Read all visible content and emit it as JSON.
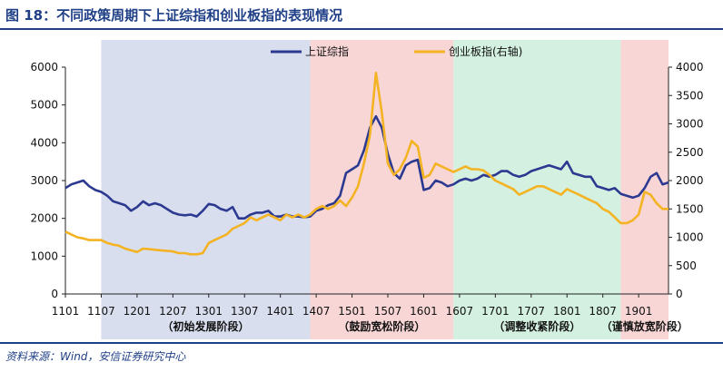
{
  "header": {
    "title": "图 18：不同政策周期下上证综指和创业板指的表现情况"
  },
  "footer": {
    "source": "资料来源：Wind，安信证券研究中心"
  },
  "chart_data": {
    "type": "line",
    "x": [
      "1101",
      "1102",
      "1103",
      "1104",
      "1105",
      "1106",
      "1107",
      "1108",
      "1109",
      "1110",
      "1111",
      "1112",
      "1201",
      "1202",
      "1203",
      "1204",
      "1205",
      "1206",
      "1207",
      "1208",
      "1209",
      "1210",
      "1211",
      "1212",
      "1301",
      "1302",
      "1303",
      "1304",
      "1305",
      "1306",
      "1307",
      "1308",
      "1309",
      "1310",
      "1311",
      "1312",
      "1401",
      "1402",
      "1403",
      "1404",
      "1405",
      "1406",
      "1407",
      "1408",
      "1409",
      "1410",
      "1411",
      "1412",
      "1501",
      "1502",
      "1503",
      "1504",
      "1505",
      "1506",
      "1507",
      "1508",
      "1509",
      "1510",
      "1511",
      "1512",
      "1601",
      "1602",
      "1603",
      "1604",
      "1605",
      "1606",
      "1607",
      "1608",
      "1609",
      "1610",
      "1611",
      "1612",
      "1701",
      "1702",
      "1703",
      "1704",
      "1705",
      "1706",
      "1707",
      "1708",
      "1709",
      "1710",
      "1711",
      "1712",
      "1801",
      "1802",
      "1803",
      "1804",
      "1805",
      "1806",
      "1807",
      "1808",
      "1809",
      "1810",
      "1811",
      "1812",
      "1901",
      "1902",
      "1903",
      "1904",
      "1905",
      "1906"
    ],
    "x_tick_labels": [
      "1101",
      "1107",
      "1201",
      "1207",
      "1301",
      "1307",
      "1401",
      "1407",
      "1501",
      "1507",
      "1601",
      "1607",
      "1701",
      "1707",
      "1801",
      "1807",
      "1901"
    ],
    "series": [
      {
        "name": "上证综指",
        "color": "#2b3990",
        "axis": "left",
        "values": [
          2800,
          2900,
          2950,
          3000,
          2850,
          2750,
          2700,
          2600,
          2450,
          2400,
          2350,
          2200,
          2300,
          2450,
          2350,
          2400,
          2350,
          2250,
          2150,
          2100,
          2080,
          2100,
          2050,
          2200,
          2380,
          2350,
          2250,
          2200,
          2300,
          2000,
          2000,
          2100,
          2150,
          2150,
          2200,
          2050,
          2050,
          2100,
          2050,
          2050,
          2030,
          2050,
          2200,
          2250,
          2350,
          2400,
          2600,
          3200,
          3300,
          3400,
          3800,
          4400,
          4700,
          4400,
          3700,
          3200,
          3050,
          3400,
          3500,
          3550,
          2750,
          2800,
          3000,
          2950,
          2850,
          2900,
          3000,
          3050,
          3000,
          3050,
          3150,
          3100,
          3150,
          3250,
          3250,
          3150,
          3100,
          3150,
          3250,
          3300,
          3350,
          3400,
          3350,
          3300,
          3500,
          3200,
          3150,
          3100,
          3100,
          2850,
          2800,
          2750,
          2800,
          2650,
          2600,
          2550,
          2600,
          2800,
          3100,
          3200,
          2900,
          2950
        ]
      },
      {
        "name": "创业板指(右轴)",
        "color": "#f4b323",
        "axis": "right",
        "values": [
          1100,
          1050,
          1000,
          980,
          950,
          950,
          950,
          900,
          870,
          850,
          800,
          770,
          740,
          800,
          790,
          780,
          770,
          760,
          750,
          720,
          720,
          700,
          700,
          720,
          900,
          950,
          1000,
          1050,
          1150,
          1200,
          1250,
          1350,
          1300,
          1350,
          1400,
          1350,
          1300,
          1400,
          1350,
          1400,
          1350,
          1400,
          1500,
          1550,
          1500,
          1550,
          1650,
          1550,
          1700,
          1900,
          2300,
          2800,
          3900,
          3200,
          2300,
          2100,
          2200,
          2400,
          2700,
          2600,
          2050,
          2100,
          2300,
          2250,
          2200,
          2150,
          2200,
          2250,
          2200,
          2200,
          2180,
          2100,
          2000,
          1950,
          1900,
          1850,
          1750,
          1800,
          1850,
          1900,
          1900,
          1850,
          1800,
          1750,
          1850,
          1800,
          1750,
          1700,
          1650,
          1600,
          1500,
          1450,
          1350,
          1250,
          1250,
          1300,
          1400,
          1800,
          1750,
          1600,
          1500,
          1500
        ]
      }
    ],
    "y_left": {
      "min": 0,
      "max": 6000,
      "ticks": [
        "0",
        "1000",
        "2000",
        "3000",
        "4000",
        "5000",
        "6000"
      ]
    },
    "y_right": {
      "min": 0,
      "max": 4000,
      "ticks": [
        "0",
        "500",
        "1000",
        "1500",
        "2000",
        "2500",
        "3000",
        "3500",
        "4000"
      ]
    },
    "phases": [
      {
        "label": "（初始发展阶段）",
        "start": "1107",
        "end": "1406",
        "color": "#d8deee"
      },
      {
        "label": "（鼓励宽松阶段）",
        "start": "1406",
        "end": "1606",
        "color": "#f9d6d6"
      },
      {
        "label": "（调整收紧阶段）",
        "start": "1606",
        "end": "1810",
        "color": "#d3f0e0"
      },
      {
        "label": "（谨慎放宽阶段）",
        "start": "1810",
        "end": "1906",
        "color": "#f9d6d6"
      }
    ],
    "legend_position": "top-center",
    "grid": false
  }
}
